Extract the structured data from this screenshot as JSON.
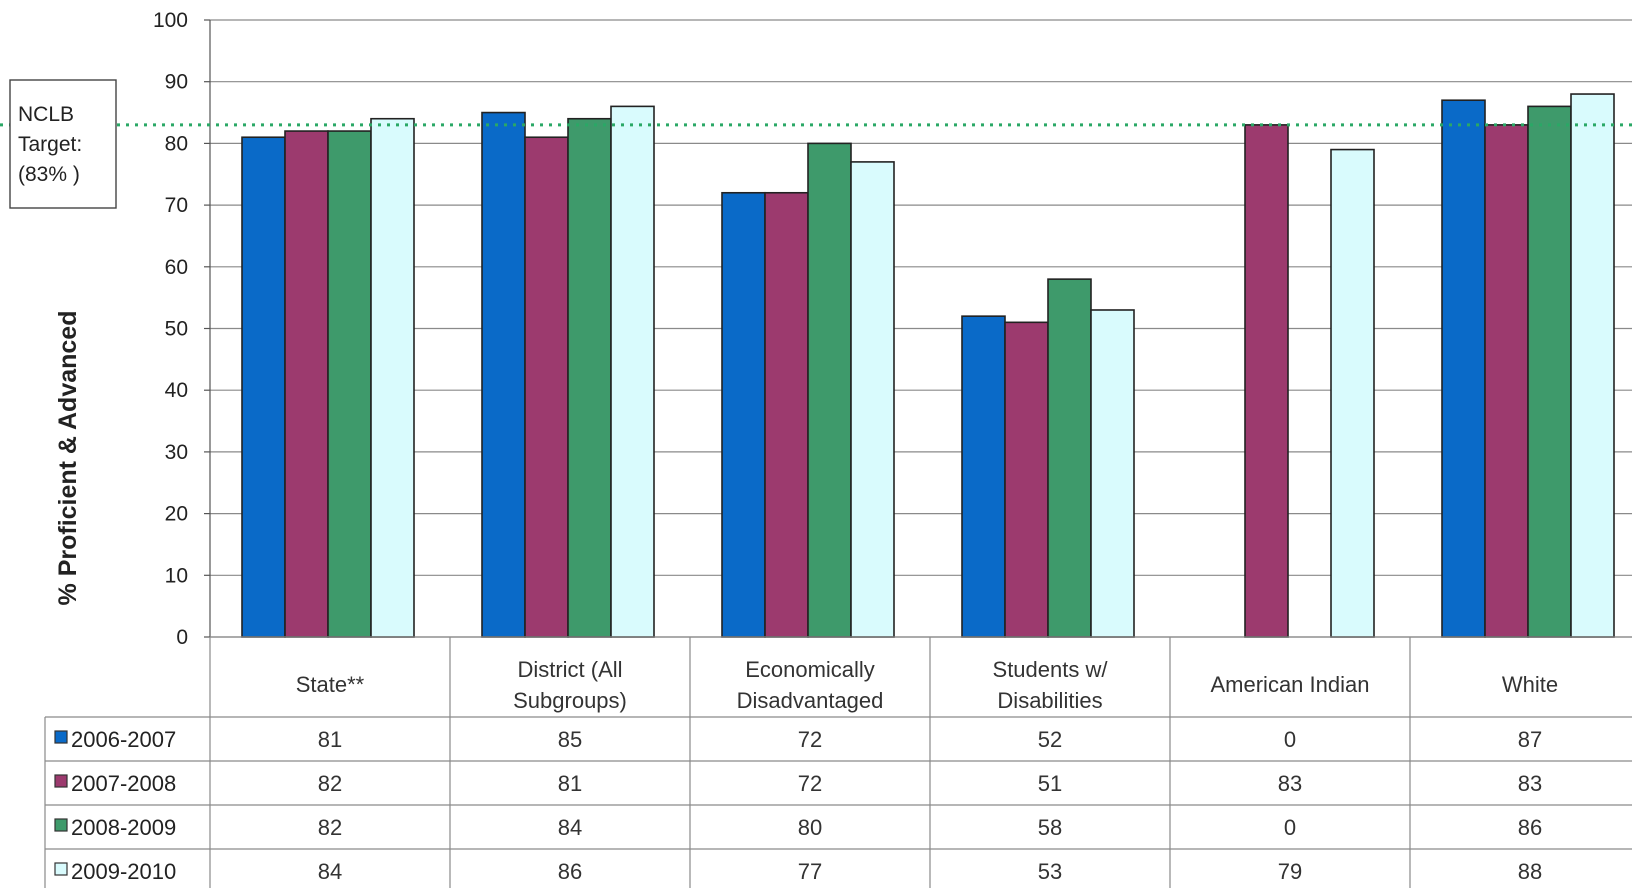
{
  "chart_data": {
    "type": "bar",
    "categories": [
      [
        "State**"
      ],
      [
        "District (All",
        "Subgroups)"
      ],
      [
        "Economically",
        "Disadvantaged"
      ],
      [
        "Students w/",
        "Disabilities"
      ],
      [
        "American Indian"
      ],
      [
        "White"
      ]
    ],
    "series": [
      {
        "name": "2006-2007",
        "color": "#0a6ac8",
        "values": [
          81,
          85,
          72,
          52,
          0,
          87
        ]
      },
      {
        "name": "2007-2008",
        "color": "#9c3a6e",
        "values": [
          82,
          81,
          72,
          51,
          83,
          83
        ]
      },
      {
        "name": "2008-2009",
        "color": "#3e9a6b",
        "values": [
          82,
          84,
          80,
          58,
          0,
          86
        ]
      },
      {
        "name": "2009-2010",
        "color": "#d9fbfd",
        "values": [
          84,
          86,
          77,
          53,
          79,
          88
        ]
      }
    ],
    "ylabel": "% Proficient & Advanced",
    "ylim": [
      0,
      100
    ],
    "yticks": [
      0,
      10,
      20,
      30,
      40,
      50,
      60,
      70,
      80,
      90,
      100
    ],
    "grid": true,
    "legend": "data-table",
    "target": {
      "value": 83,
      "label_lines": [
        "NCLB",
        "Target:",
        "(83% )"
      ],
      "color": "#2aa866"
    }
  }
}
